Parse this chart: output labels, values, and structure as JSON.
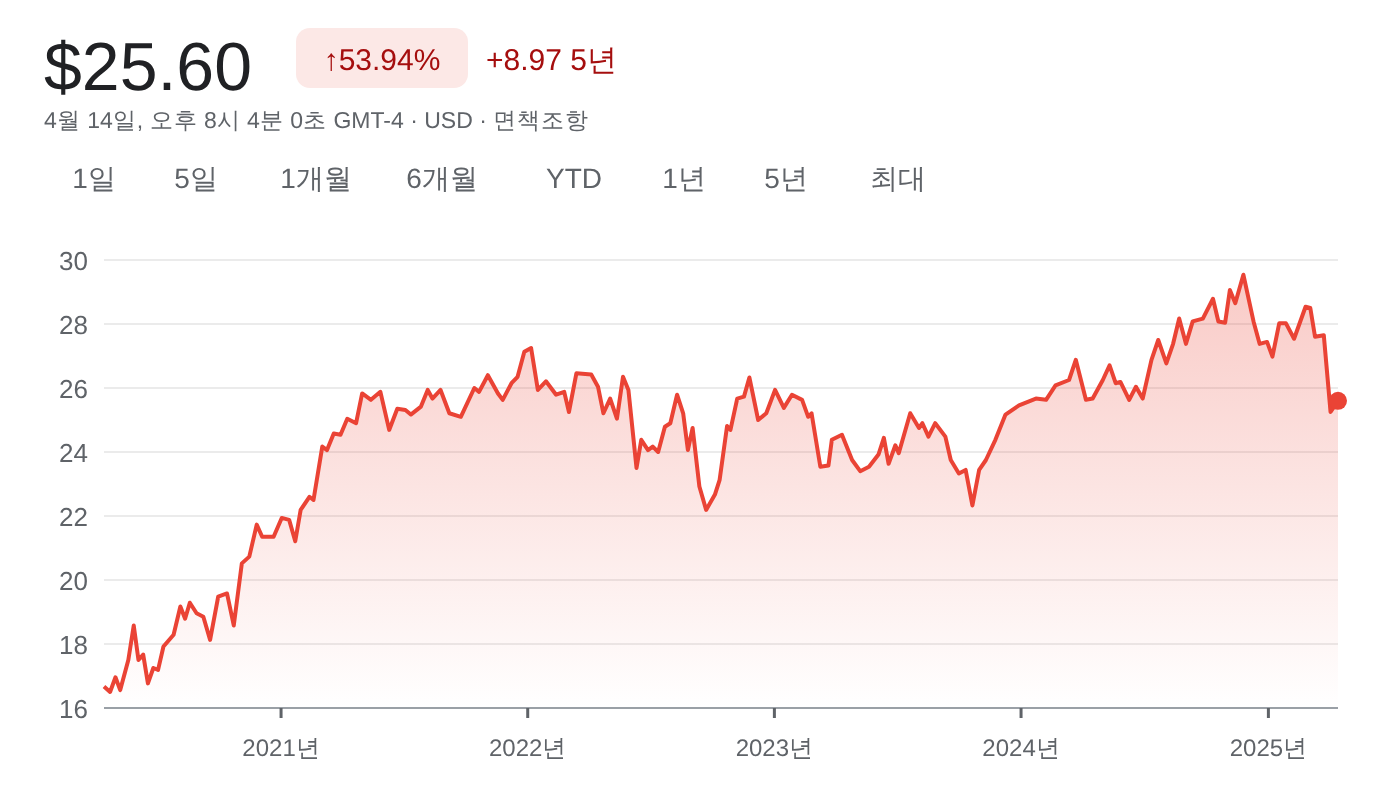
{
  "chart_data": {
    "type": "area",
    "title": "$25.60",
    "subtitle": "4월 14일, 오후 8시 4분 0초 GMT-4 · USD · 면책조항",
    "annotations": [
      "↑53.94%",
      "+8.97 5년",
      "1일",
      "5일",
      "1개월",
      "6개월",
      "YTD",
      "1년",
      "5년",
      "최대"
    ],
    "x": [
      "2020-04-14",
      "2020-04-23",
      "2020-05-01",
      "2020-05-08",
      "2020-05-20",
      "2020-05-28",
      "2020-06-04",
      "2020-06-11",
      "2020-06-18",
      "2020-06-26",
      "2020-07-03",
      "2020-07-11",
      "2020-07-26",
      "2020-08-05",
      "2020-08-12",
      "2020-08-19",
      "2020-08-29",
      "2020-09-08",
      "2020-09-18",
      "2020-09-30",
      "2020-10-13",
      "2020-10-23",
      "2020-11-04",
      "2020-11-15",
      "2020-11-26",
      "2020-12-04",
      "2020-12-21",
      "2021-01-02",
      "2021-01-13",
      "2021-01-22",
      "2021-01-30",
      "2021-02-12",
      "2021-02-18",
      "2021-03-03",
      "2021-03-10",
      "2021-03-20",
      "2021-03-30",
      "2021-04-09",
      "2021-04-22",
      "2021-05-01",
      "2021-05-14",
      "2021-05-28",
      "2021-06-10",
      "2021-06-22",
      "2021-07-04",
      "2021-07-12",
      "2021-07-27",
      "2021-08-06",
      "2021-08-13",
      "2021-08-25",
      "2021-09-07",
      "2021-09-24",
      "2021-10-14",
      "2021-10-21",
      "2021-11-03",
      "2021-11-18",
      "2021-11-25",
      "2021-12-08",
      "2021-12-17",
      "2021-12-27",
      "2022-01-06",
      "2022-01-16",
      "2022-01-28",
      "2022-02-12",
      "2022-02-24",
      "2022-03-03",
      "2022-03-14",
      "2022-04-05",
      "2022-04-15",
      "2022-04-23",
      "2022-05-03",
      "2022-05-13",
      "2022-05-22",
      "2022-05-30",
      "2022-06-11",
      "2022-06-18",
      "2022-06-28",
      "2022-07-05",
      "2022-07-13",
      "2022-07-23",
      "2022-07-31",
      "2022-08-10",
      "2022-08-19",
      "2022-08-26",
      "2022-09-02",
      "2022-09-12",
      "2022-09-22",
      "2022-10-05",
      "2022-10-12",
      "2022-10-23",
      "2022-10-28",
      "2022-11-07",
      "2022-11-17",
      "2022-11-25",
      "2022-12-08",
      "2022-12-20",
      "2023-01-02",
      "2023-01-15",
      "2023-01-27",
      "2023-02-11",
      "2023-02-20",
      "2023-02-25",
      "2023-03-10",
      "2023-03-22",
      "2023-03-27",
      "2023-04-11",
      "2023-04-26",
      "2023-05-08",
      "2023-05-21",
      "2023-06-04",
      "2023-06-12",
      "2023-06-19",
      "2023-06-29",
      "2023-07-04",
      "2023-07-21",
      "2023-08-03",
      "2023-08-08",
      "2023-08-17",
      "2023-08-27",
      "2023-09-11",
      "2023-09-19",
      "2023-10-01",
      "2023-10-11",
      "2023-10-21",
      "2023-10-31",
      "2023-11-10",
      "2023-11-24",
      "2023-12-09",
      "2023-12-29",
      "2024-01-23",
      "2024-02-07",
      "2024-02-21",
      "2024-03-12",
      "2024-03-22",
      "2024-04-06",
      "2024-04-16",
      "2024-05-01",
      "2024-05-11",
      "2024-05-20",
      "2024-05-27",
      "2024-06-09",
      "2024-06-19",
      "2024-06-29",
      "2024-07-12",
      "2024-07-22",
      "2024-08-03",
      "2024-08-13",
      "2024-08-22",
      "2024-09-01",
      "2024-09-11",
      "2024-09-26",
      "2024-10-11",
      "2024-10-19",
      "2024-10-29",
      "2024-11-05",
      "2024-11-13",
      "2024-11-25",
      "2024-12-10",
      "2024-12-19",
      "2024-12-30",
      "2025-01-07",
      "2025-01-17",
      "2025-01-27",
      "2025-02-08",
      "2025-02-25",
      "2025-03-04",
      "2025-03-11",
      "2025-03-24",
      "2025-04-03",
      "2025-04-14"
    ],
    "series": [
      {
        "color": "#ea4335",
        "values": [
          16.67,
          16.5,
          16.96,
          16.56,
          17.5,
          18.58,
          17.5,
          17.67,
          16.77,
          17.25,
          17.19,
          17.92,
          18.29,
          19.17,
          18.79,
          19.29,
          18.96,
          18.85,
          18.13,
          19.48,
          19.58,
          18.58,
          20.52,
          20.73,
          21.73,
          21.35,
          21.35,
          21.94,
          21.88,
          21.21,
          22.19,
          22.6,
          22.5,
          24.17,
          24.06,
          24.58,
          24.54,
          25.04,
          24.9,
          25.83,
          25.63,
          25.88,
          24.69,
          25.35,
          25.31,
          25.17,
          25.42,
          25.94,
          25.67,
          25.94,
          25.21,
          25.1,
          26.0,
          25.88,
          26.4,
          25.83,
          25.63,
          26.15,
          26.35,
          27.13,
          27.25,
          25.94,
          26.21,
          25.79,
          25.88,
          25.25,
          26.46,
          26.42,
          26.04,
          25.21,
          25.67,
          25.04,
          26.35,
          25.94,
          23.5,
          24.38,
          24.06,
          24.17,
          24.0,
          24.79,
          24.9,
          25.79,
          25.21,
          24.06,
          24.75,
          22.92,
          22.19,
          22.67,
          23.13,
          24.81,
          24.69,
          25.67,
          25.73,
          26.33,
          25.0,
          25.21,
          25.94,
          25.38,
          25.79,
          25.63,
          25.1,
          25.21,
          23.54,
          23.58,
          24.38,
          24.54,
          23.75,
          23.4,
          23.54,
          23.92,
          24.44,
          23.63,
          24.21,
          23.96,
          25.21,
          24.75,
          24.9,
          24.48,
          24.9,
          24.48,
          23.75,
          23.33,
          23.44,
          22.33,
          23.44,
          23.75,
          24.38,
          25.17,
          25.46,
          25.67,
          25.63,
          26.08,
          26.25,
          26.88,
          25.63,
          25.67,
          26.25,
          26.71,
          26.15,
          26.19,
          25.63,
          26.04,
          25.67,
          26.88,
          27.5,
          26.77,
          27.38,
          28.17,
          27.38,
          28.08,
          28.17,
          28.79,
          28.08,
          28.04,
          29.06,
          28.65,
          29.54,
          28.08,
          27.38,
          27.44,
          26.98,
          28.02,
          28.02,
          27.54,
          28.54,
          28.5,
          27.6,
          27.65,
          25.25,
          25.6
        ]
      }
    ],
    "xlim": [
      "2020-04-14",
      "2025-04-14"
    ],
    "xticks": [
      {
        "value": "2021-01-01",
        "label": "2021년"
      },
      {
        "value": "2022-01-01",
        "label": "2022년"
      },
      {
        "value": "2023-01-01",
        "label": "2023년"
      },
      {
        "value": "2024-01-01",
        "label": "2024년"
      },
      {
        "value": "2025-01-01",
        "label": "2025년"
      }
    ],
    "ylim": [
      16,
      30
    ],
    "yticks": [
      16,
      18,
      20,
      22,
      24,
      26,
      28,
      30
    ],
    "grid": "y"
  }
}
